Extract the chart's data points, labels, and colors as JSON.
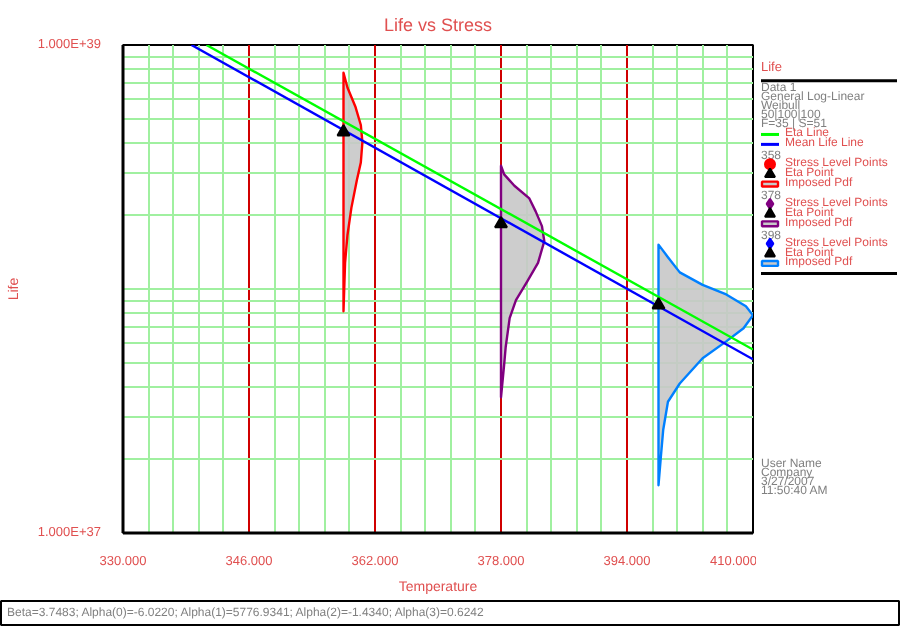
{
  "chart_data": {
    "type": "line",
    "title": "Life vs Stress",
    "xlabel": "Temperature",
    "ylabel": "Life",
    "legend_title": "Life",
    "log": "y",
    "grid": true,
    "legend": "right",
    "xlim": [
      330,
      410
    ],
    "ylim": [
      1e+37,
      1e+39
    ],
    "xticks": [
      {
        "value": 330,
        "label": "330.000"
      },
      {
        "value": 333.2,
        "label": null
      },
      {
        "value": 336.4,
        "label": null
      },
      {
        "value": 339.6,
        "label": null
      },
      {
        "value": 342.8,
        "label": null
      },
      {
        "value": 346,
        "label": "346.000"
      },
      {
        "value": 349.2,
        "label": null
      },
      {
        "value": 352.4,
        "label": null
      },
      {
        "value": 355.6,
        "label": null
      },
      {
        "value": 358.8,
        "label": null
      },
      {
        "value": 362,
        "label": "362.000"
      },
      {
        "value": 365.2,
        "label": null
      },
      {
        "value": 368.4,
        "label": null
      },
      {
        "value": 371.6,
        "label": null
      },
      {
        "value": 374.8,
        "label": null
      },
      {
        "value": 378,
        "label": "378.000"
      },
      {
        "value": 381.2,
        "label": null
      },
      {
        "value": 384.4,
        "label": null
      },
      {
        "value": 387.6,
        "label": null
      },
      {
        "value": 390.8,
        "label": null
      },
      {
        "value": 394,
        "label": "394.000"
      },
      {
        "value": 397.2,
        "label": null
      },
      {
        "value": 400.4,
        "label": null
      },
      {
        "value": 403.6,
        "label": null
      },
      {
        "value": 406.8,
        "label": null
      },
      {
        "value": 410,
        "label": "410.000"
      }
    ],
    "yticks": [
      {
        "value": 1e+37,
        "label": "1.000E+37"
      },
      {
        "value": 2e+37,
        "label": null
      },
      {
        "value": 3e+37,
        "label": null
      },
      {
        "value": 4e+37,
        "label": null
      },
      {
        "value": 5e+37,
        "label": null
      },
      {
        "value": 6e+37,
        "label": null
      },
      {
        "value": 7e+37,
        "label": null
      },
      {
        "value": 8e+37,
        "label": null
      },
      {
        "value": 9e+37,
        "label": null
      },
      {
        "value": 1e+38,
        "label": null
      },
      {
        "value": 2e+38,
        "label": null
      },
      {
        "value": 3e+38,
        "label": null
      },
      {
        "value": 4e+38,
        "label": null
      },
      {
        "value": 5e+38,
        "label": null
      },
      {
        "value": 6e+38,
        "label": null
      },
      {
        "value": 7e+38,
        "label": null
      },
      {
        "value": 8e+38,
        "label": null
      },
      {
        "value": 9e+38,
        "label": null
      },
      {
        "value": 1e+39,
        "label": "1.000E+39"
      }
    ],
    "series": [
      {
        "name": "Eta Line",
        "color": "#00ff00",
        "x": [
          340.6,
          410
        ],
        "values": [
          1e+39,
          5.65e+37
        ]
      },
      {
        "name": "Mean Life Line",
        "color": "#0000ff",
        "x": [
          338.7,
          410
        ],
        "values": [
          1e+39,
          5.15e+37
        ]
      },
      {
        "name": "Stress Level Points",
        "type": "scatter",
        "marker": "circle",
        "color": "#ff0000",
        "values": [
          null
        ]
      },
      {
        "name": "Eta Point",
        "type": "scatter",
        "marker": "triangle",
        "color": "#000000",
        "x": [
          358
        ],
        "values": [
          4.4e+38
        ]
      },
      {
        "name": "Imposed Pdf",
        "type": "area",
        "color": "#ff0000",
        "x": [
          358,
          358.5,
          359.5,
          360.2,
          360.4,
          360.2,
          359.7,
          359,
          358.5,
          358.2,
          358
        ],
        "values": [
          7.7e+38,
          6.7e+38,
          5.6e+38,
          4.7e+38,
          4e+38,
          3.3e+38,
          2.8e+38,
          2.15e+38,
          1.66e+38,
          1.28e+38,
          8.1e+37
        ]
      },
      {
        "name": "Stress Level Points",
        "type": "scatter",
        "marker": "diamond",
        "color": "#800080",
        "values": [
          null
        ]
      },
      {
        "name": "Eta Point",
        "type": "scatter",
        "marker": "triangle",
        "color": "#000000",
        "x": [
          378
        ],
        "values": [
          1.85e+38
        ]
      },
      {
        "name": "Imposed Pdf",
        "type": "area",
        "color": "#800080",
        "x": [
          378,
          378.4,
          379.7,
          381.6,
          382.4,
          383.2,
          383.5,
          382.7,
          381.3,
          379.9,
          379.1,
          378.6,
          378.4,
          378
        ],
        "values": [
          3.2e+38,
          2.95e+38,
          2.65e+38,
          2.35e+38,
          2.08e+38,
          1.81e+38,
          1.57e+38,
          1.28e+38,
          1.07e+38,
          9e+37,
          7.6e+37,
          5.8e+37,
          4.9e+37,
          3.6e+37
        ]
      },
      {
        "name": "Stress Level Points",
        "type": "scatter",
        "marker": "diamond",
        "color": "#0000ff",
        "values": [
          null
        ]
      },
      {
        "name": "Eta Point",
        "type": "scatter",
        "marker": "triangle",
        "color": "#000000",
        "x": [
          398
        ],
        "values": [
          8.6e+37
        ]
      },
      {
        "name": "Imposed Pdf",
        "type": "area",
        "color": "#0080ff",
        "x": [
          398,
          399.2,
          400.7,
          403.6,
          406.6,
          409.1,
          410,
          408.8,
          406.6,
          403.6,
          400.7,
          399.2,
          398.6,
          398.3,
          398
        ],
        "values": [
          1.52e+38,
          1.35e+38,
          1.17e+38,
          1.04e+38,
          9.5e+37,
          8.5e+37,
          7.8e+37,
          6.9e+37,
          6.1e+37,
          5.2e+37,
          4.1e+37,
          3.45e+37,
          2.65e+37,
          2.05e+37,
          1.57e+37
        ]
      }
    ],
    "annotations": [
      "Data 1",
      "General Log-Linear",
      "Weibull",
      "50|100|100",
      "F=35 | S=51",
      "358",
      "378",
      "398",
      "User Name",
      "Company",
      "3/27/2007",
      "11:50:40 AM",
      "Beta=3.7483; Alpha(0)=-6.0220; Alpha(1)=5776.9341; Alpha(2)=-1.4340; Alpha(3)=0.6242"
    ]
  }
}
